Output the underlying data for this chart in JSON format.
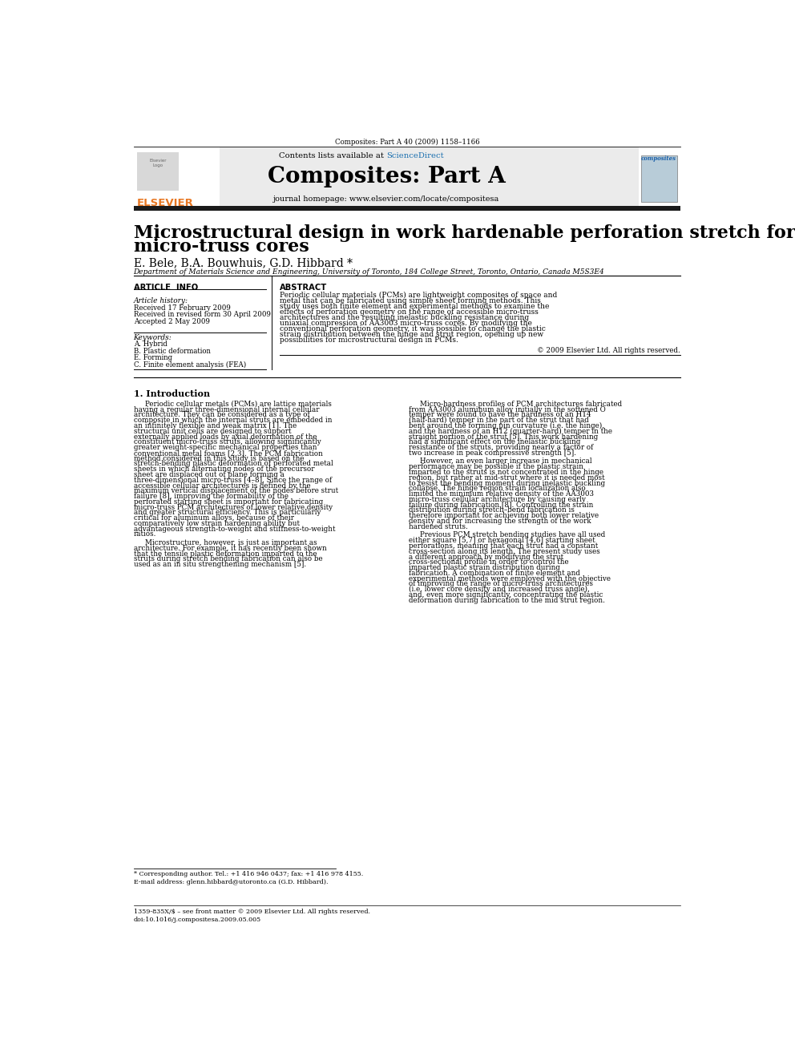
{
  "journal_ref": "Composites: Part A 40 (2009) 1158–1166",
  "contents_text": "Contents lists available at",
  "sciencedirect_text": "ScienceDirect",
  "journal_name": "Composites: Part A",
  "homepage_text": "journal homepage: www.elsevier.com/locate/compositesa",
  "paper_title_line1": "Microstructural design in work hardenable perforation stretch formed",
  "paper_title_line2": "micro-truss cores",
  "authors": "E. Bele, B.A. Bouwhuis, G.D. Hibbard *",
  "affiliation": "Department of Materials Science and Engineering, University of Toronto, 184 College Street, Toronto, Ontario, Canada M5S3E4",
  "article_info_title": "ARTICLE  INFO",
  "abstract_title": "ABSTRACT",
  "article_history_label": "Article history:",
  "received_line1": "Received 17 February 2009",
  "received_line2": "Received in revised form 30 April 2009",
  "accepted_line": "Accepted 2 May 2009",
  "keywords_label": "Keywords:",
  "keyword1": "A. Hybrid",
  "keyword2": "B. Plastic deformation",
  "keyword3": "E. Forming",
  "keyword4": "C. Finite element analysis (FEA)",
  "abstract_text": "Periodic cellular materials (PCMs) are lightweight composites of space and metal that can be fabricated using simple sheet forming methods. This study uses both finite element and experimental methods to examine the effects of perforation geometry on the range of accessible micro-truss architectures and the resulting inelastic buckling resistance during uniaxial compression of AA3003 micro-truss cores. By modifying the conventional perforation geometry, it was possible to change the plastic strain distribution between the hinge and strut region, opening up new possibilities for microstructural design in PCMs.",
  "copyright_text": "© 2009 Elsevier Ltd. All rights reserved.",
  "intro_title": "1. Introduction",
  "intro_col1_para1": "Periodic cellular metals (PCMs) are lattice materials having a regular three-dimensional internal cellular architecture. They can be considered as a type of composite in which the internal struts are embedded in an infinitely flexible and weak matrix [1]. The structural unit cells are designed to support externally applied loads by axial deformation of the constituent micro-truss struts, allowing significantly greater weight-specific mechanical properties than conventional metal foams [2,3]. The PCM fabrication method considered in this study is based on the stretch-bending plastic deformation of perforated metal sheets in which alternating nodes of the precursor sheet are displaced out of plane forming a three-dimensional micro-truss [4–8]. Since the range of accessible cellular architectures is defined by the maximum vertical displacement of the nodes before strut failure [8], improving the formability of the perforated starting sheet is important for fabricating micro-truss PCM architectures of lower relative density and greater structural efficiency. This is particularly critical for aluminum alloys, because of their comparatively low strain hardening ability but advantageous strength-to-weight and stiffness-to-weight ratios.",
  "intro_col1_para2": "Microstructure, however, is just as important as architecture. For example, it has recently been shown that the tensile plastic deformation imparted to the struts during stretch bending fabrication can also be used as an in situ strengthening mechanism [5].",
  "intro_col2_para1": "Micro-hardness profiles of PCM architectures fabricated from AA3003 aluminum alloy initially in the softened O temper were found to have the hardness of an H14 (half-hard) temper in the part of the strut that had bent around the forming pin curvature (i.e. the hinge), and the hardness of an H12 (quarter-hard) temper in the straight portion of the strut [5]. This work hardening had a significant effect on the inelastic buckling resistance of the struts, providing nearly a factor of two increase in peak compressive strength [5].",
  "intro_col2_para2": "However, an even larger increase in mechanical performance may be possible if the plastic strain imparted to the struts is not concentrated in the hinge region, but rather at mid-strut where it is needed most to resist the bending moment during inelastic buckling collapse. The hinge region strain localization also limited the minimum relative density of the AA3003 micro-truss cellular architecture by causing early failure during fabrication [8]. Controlling the strain distribution during stretch–bend fabrication is therefore important for achieving both lower relative density and for increasing the strength of the work hardened struts.",
  "intro_col2_para3": "Previous PCM stretch bending studies have all used either square [5,7] or hexagonal [4,6] starting sheet perforations, meaning that each strut had a constant cross-section along its length. The present study uses a different approach by modifying the strut cross-sectional profile in order to control the imparted plastic strain distribution during fabrication. A combination of finite element and experimental methods were employed with the objective of improving the range of micro-truss architectures (i.e. lower core density and increased truss angle), and, even more significantly, concentrating the plastic deformation during fabrication to the mid strut region.",
  "footnote_star": "* Corresponding author. Tel.: +1 416 946 0437; fax: +1 416 978 4155.",
  "footnote_email": "E-mail address: glenn.hibbard@utoronto.ca (G.D. Hibbard).",
  "footer_issn": "1359-835X/$ – see front matter © 2009 Elsevier Ltd. All rights reserved.",
  "footer_doi": "doi:10.1016/j.compositesa.2009.05.005",
  "bg_color": "#ffffff",
  "header_bg": "#ebebeb",
  "black_bar_color": "#1a1a1a",
  "elsevier_orange": "#e87722",
  "sciencedirect_blue": "#1a6faf",
  "title_font_size": 16,
  "body_font_size": 7.2,
  "small_font_size": 6.5
}
